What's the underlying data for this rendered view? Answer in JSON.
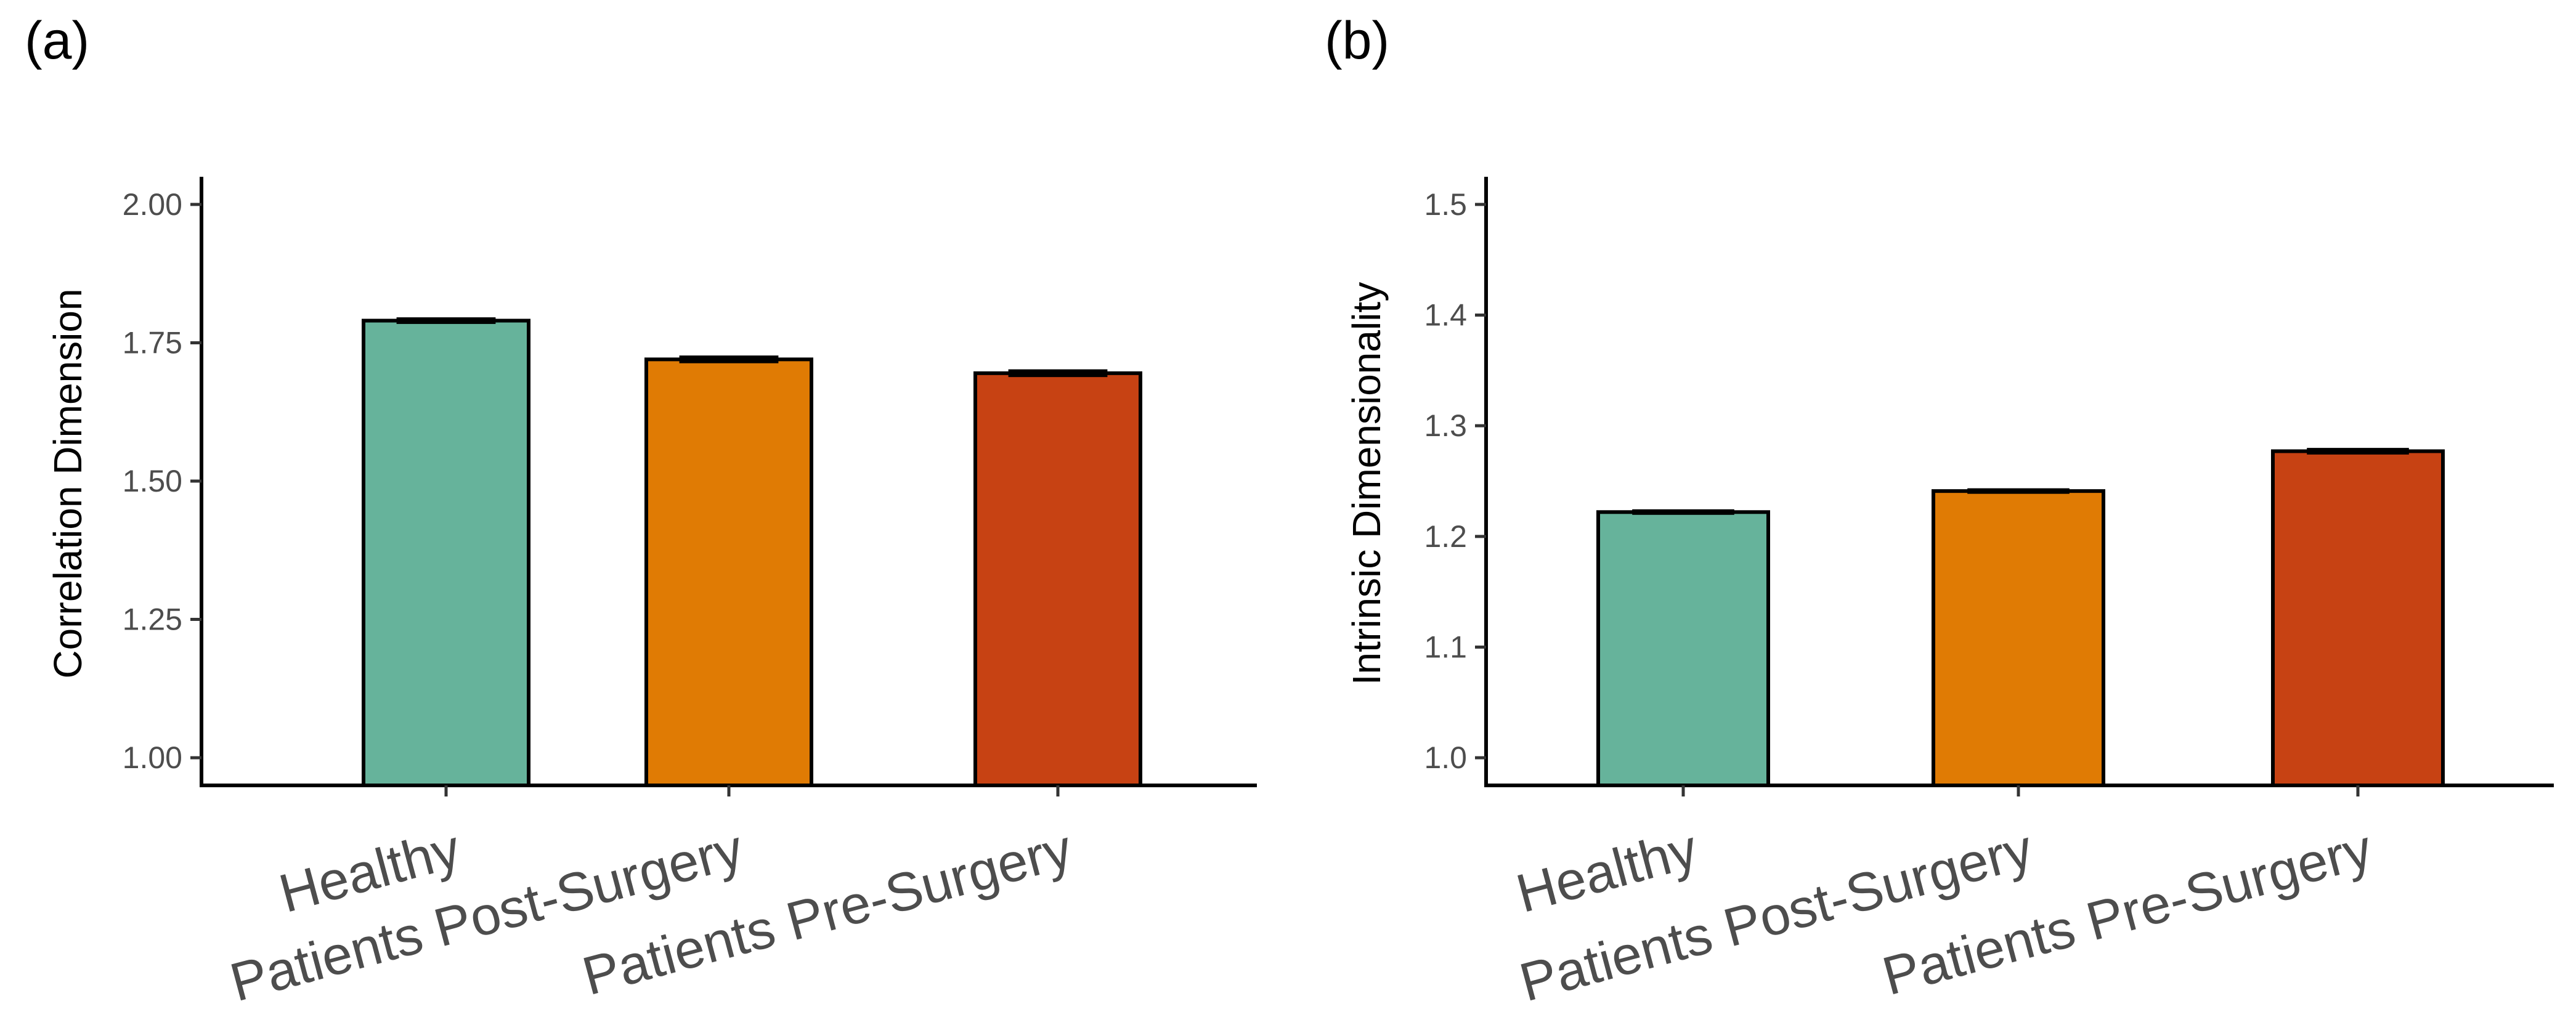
{
  "figure": {
    "colors": {
      "healthy": "#66b39b",
      "post_surgery": "#e07b04",
      "pre_surgery": "#c74213",
      "axis": "#000000",
      "tick_text": "#4d4d4d"
    }
  },
  "chart_data": [
    {
      "type": "bar",
      "panel_label": "(a)",
      "title": "",
      "xlabel": "",
      "ylabel": "Correlation Dimension",
      "categories": [
        "Healthy",
        "Patients Post-Surgery",
        "Patients Pre-Surgery"
      ],
      "values": [
        1.79,
        1.72,
        1.695
      ],
      "errors": [
        0.006,
        0.007,
        0.007
      ],
      "colors": [
        "#66b39b",
        "#e07b04",
        "#c74213"
      ],
      "ylim": [
        0.95,
        2.05
      ],
      "yticks": [
        1.0,
        1.25,
        1.5,
        1.75,
        2.0
      ],
      "ytick_labels": [
        "1.00",
        "1.25",
        "1.50",
        "1.75",
        "2.00"
      ],
      "grid": false
    },
    {
      "type": "bar",
      "panel_label": "(b)",
      "title": "",
      "xlabel": "",
      "ylabel": "Intrinsic Dimensionality",
      "categories": [
        "Healthy",
        "Patients Post-Surgery",
        "Patients Pre-Surgery"
      ],
      "values": [
        1.222,
        1.241,
        1.277
      ],
      "errors": [
        0.002,
        0.002,
        0.003
      ],
      "colors": [
        "#66b39b",
        "#e07b04",
        "#c74213"
      ],
      "ylim": [
        0.975,
        1.525
      ],
      "yticks": [
        1.0,
        1.1,
        1.2,
        1.3,
        1.4,
        1.5
      ],
      "ytick_labels": [
        "1.0",
        "1.1",
        "1.2",
        "1.3",
        "1.4",
        "1.5"
      ],
      "grid": false
    }
  ]
}
